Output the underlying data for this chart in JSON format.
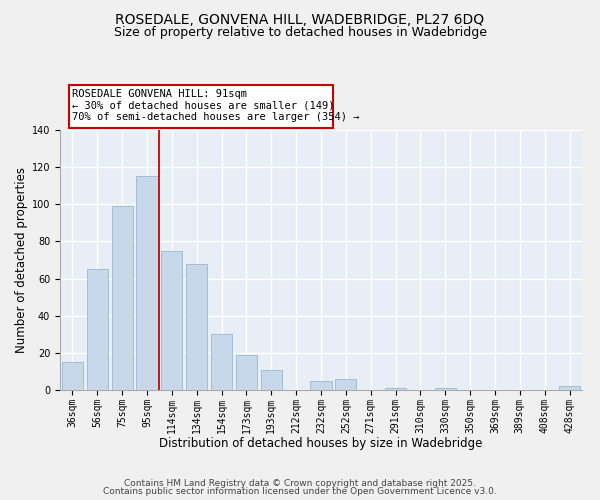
{
  "title": "ROSEDALE, GONVENA HILL, WADEBRIDGE, PL27 6DQ",
  "subtitle": "Size of property relative to detached houses in Wadebridge",
  "xlabel": "Distribution of detached houses by size in Wadebridge",
  "ylabel": "Number of detached properties",
  "bar_labels": [
    "36sqm",
    "56sqm",
    "75sqm",
    "95sqm",
    "114sqm",
    "134sqm",
    "154sqm",
    "173sqm",
    "193sqm",
    "212sqm",
    "232sqm",
    "252sqm",
    "271sqm",
    "291sqm",
    "310sqm",
    "330sqm",
    "350sqm",
    "369sqm",
    "389sqm",
    "408sqm",
    "428sqm"
  ],
  "bar_values": [
    15,
    65,
    99,
    115,
    75,
    68,
    30,
    19,
    11,
    0,
    5,
    6,
    0,
    1,
    0,
    1,
    0,
    0,
    0,
    0,
    2
  ],
  "bar_color": "#c8d8eb",
  "bar_edge_color": "#9ab8d0",
  "vline_x": 3.5,
  "vline_color": "#cc0000",
  "ylim": [
    0,
    140
  ],
  "yticks": [
    0,
    20,
    40,
    60,
    80,
    100,
    120,
    140
  ],
  "annotation_line1": "ROSEDALE GONVENA HILL: 91sqm",
  "annotation_line2": "← 30% of detached houses are smaller (149)",
  "annotation_line3": "70% of semi-detached houses are larger (354) →",
  "footer_line1": "Contains HM Land Registry data © Crown copyright and database right 2025.",
  "footer_line2": "Contains public sector information licensed under the Open Government Licence v3.0.",
  "background_color": "#f0f0f0",
  "plot_bg_color": "#e8eef5",
  "grid_color": "#ffffff",
  "title_fontsize": 10,
  "subtitle_fontsize": 9,
  "axis_label_fontsize": 8.5,
  "tick_fontsize": 7,
  "annotation_fontsize": 7.5,
  "footer_fontsize": 6.5
}
